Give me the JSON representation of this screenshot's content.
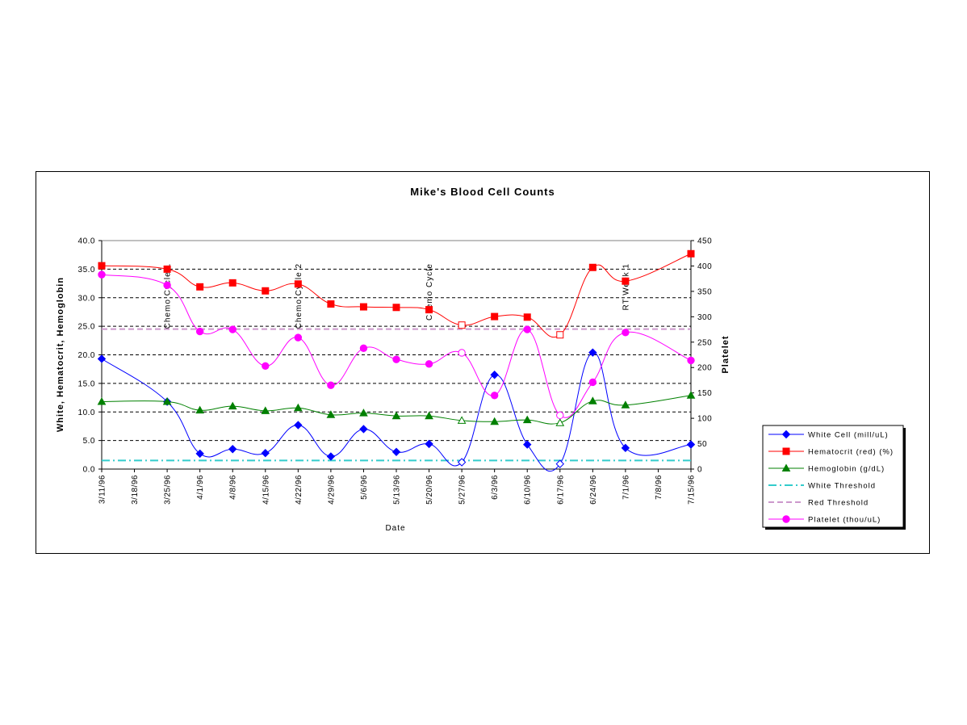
{
  "chart_data": {
    "type": "line",
    "title": "Mike's Blood Cell Counts",
    "xlabel": "Date",
    "ylabel_left": "White, Hematocrit, Hemoglobin",
    "ylabel_right": "Platelet",
    "ylim_left": [
      0,
      40
    ],
    "ylim_right": [
      0,
      450
    ],
    "left_ticks": [
      "0.0",
      "5.0",
      "10.0",
      "15.0",
      "20.0",
      "25.0",
      "30.0",
      "35.0",
      "40.0"
    ],
    "right_ticks": [
      "0",
      "50",
      "100",
      "150",
      "200",
      "250",
      "300",
      "350",
      "400",
      "450"
    ],
    "x_categories": [
      "3/11/96",
      "3/18/96",
      "3/25/96",
      "4/1/96",
      "4/8/96",
      "4/15/96",
      "4/22/96",
      "4/29/96",
      "5/6/96",
      "5/13/96",
      "5/20/96",
      "5/27/96",
      "6/3/96",
      "6/10/96",
      "6/17/96",
      "6/24/96",
      "7/1/96",
      "7/8/96",
      "7/15/96"
    ],
    "grid": "horizontal dashed",
    "legend_position": "right",
    "annotations": [
      {
        "text": "Chemo Cycle 1",
        "x": "3/25/96"
      },
      {
        "text": "Chemo Cycle 2",
        "x": "4/22/96"
      },
      {
        "text": "Chemo Cycle",
        "x": "5/20/96"
      },
      {
        "text": "RT Week 1",
        "x": "7/1/96"
      }
    ],
    "series": [
      {
        "name": "White Cell (mill/uL)",
        "axis": "left",
        "color": "#0000ff",
        "marker": "diamond",
        "x": [
          "3/11/96",
          "3/25/96",
          "4/1/96",
          "4/8/96",
          "4/15/96",
          "4/22/96",
          "4/29/96",
          "5/6/96",
          "5/13/96",
          "5/20/96",
          "5/27/96",
          "6/3/96",
          "6/10/96",
          "6/17/96",
          "6/24/96",
          "7/1/96",
          "7/15/96"
        ],
        "values": [
          19.3,
          11.8,
          2.7,
          3.5,
          2.8,
          7.7,
          2.2,
          7.0,
          3.0,
          4.4,
          1.2,
          16.5,
          4.3,
          0.9,
          20.4,
          3.7,
          4.3
        ],
        "hollow": [
          "5/27/96",
          "6/17/96"
        ]
      },
      {
        "name": "Hematocrit (red) (%)",
        "axis": "left",
        "color": "#ff0000",
        "marker": "square",
        "x": [
          "3/11/96",
          "3/25/96",
          "4/1/96",
          "4/8/96",
          "4/15/96",
          "4/22/96",
          "4/29/96",
          "5/6/96",
          "5/13/96",
          "5/20/96",
          "5/27/96",
          "6/3/96",
          "6/10/96",
          "6/17/96",
          "6/24/96",
          "7/1/96",
          "7/15/96"
        ],
        "values": [
          35.6,
          35.0,
          31.9,
          32.6,
          31.2,
          32.4,
          28.9,
          28.4,
          28.3,
          27.9,
          25.2,
          26.7,
          26.6,
          23.5,
          35.3,
          32.9,
          37.7
        ],
        "hollow": [
          "5/27/96",
          "6/17/96"
        ]
      },
      {
        "name": "Hemoglobin (g/dL)",
        "axis": "left",
        "color": "#008000",
        "marker": "triangle",
        "x": [
          "3/11/96",
          "3/25/96",
          "4/1/96",
          "4/8/96",
          "4/15/96",
          "4/22/96",
          "4/29/96",
          "5/6/96",
          "5/13/96",
          "5/20/96",
          "5/27/96",
          "6/3/96",
          "6/10/96",
          "6/17/96",
          "6/24/96",
          "7/1/96",
          "7/15/96"
        ],
        "values": [
          11.8,
          11.8,
          10.3,
          11.0,
          10.2,
          10.7,
          9.5,
          9.8,
          9.3,
          9.3,
          8.5,
          8.3,
          8.6,
          8.1,
          11.9,
          11.2,
          12.9
        ],
        "hollow": [
          "5/27/96",
          "6/17/96"
        ]
      },
      {
        "name": "White Threshold",
        "axis": "left",
        "color": "#33cccc",
        "style": "dashdot",
        "values": [
          1.5
        ]
      },
      {
        "name": "Red Threshold",
        "axis": "left",
        "color": "#cc99cc",
        "style": "dashed",
        "values": [
          24.5
        ]
      },
      {
        "name": "Platelet (thou/uL)",
        "axis": "right",
        "color": "#ff00ff",
        "marker": "circle",
        "x": [
          "3/11/96",
          "3/25/96",
          "4/1/96",
          "4/8/96",
          "4/15/96",
          "4/22/96",
          "4/29/96",
          "5/6/96",
          "5/13/96",
          "5/20/96",
          "5/27/96",
          "6/3/96",
          "6/10/96",
          "6/17/96",
          "6/24/96",
          "7/1/96",
          "7/15/96"
        ],
        "values": [
          383,
          362,
          271,
          275,
          203,
          259,
          165,
          238,
          216,
          207,
          229,
          145,
          275,
          106,
          171,
          269,
          214
        ],
        "hollow": [
          "5/27/96",
          "6/17/96"
        ]
      }
    ]
  }
}
